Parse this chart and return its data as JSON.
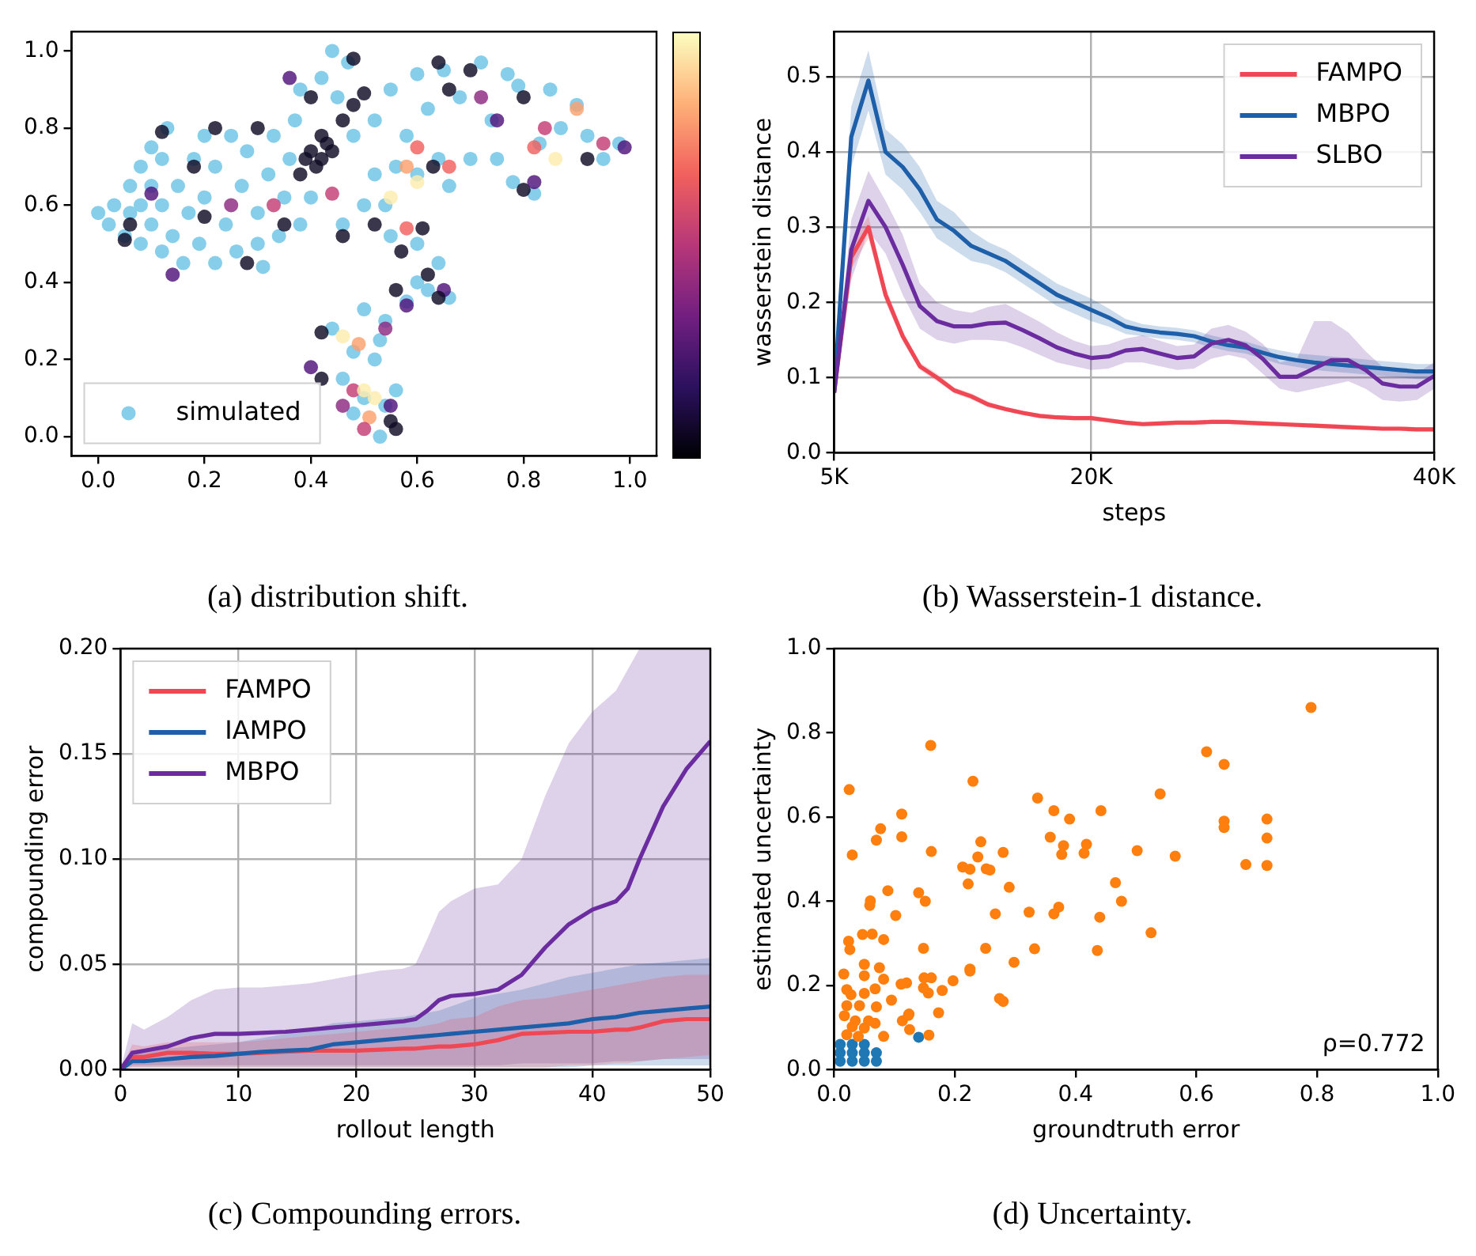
{
  "chart_data": [
    {
      "type": "scatter",
      "title": "(a) distribution shift.",
      "xlim": [
        -0.05,
        1.05
      ],
      "ylim": [
        -0.05,
        1.05
      ],
      "xticks": [
        {
          "value": 0,
          "label": "0.0"
        },
        {
          "value": 0.2,
          "label": "0.2"
        },
        {
          "value": 0.4,
          "label": "0.4"
        },
        {
          "value": 0.6,
          "label": "0.6"
        },
        {
          "value": 0.8,
          "label": "0.8"
        },
        {
          "value": 1,
          "label": "1.0"
        }
      ],
      "yticks": [
        {
          "value": 0,
          "label": "0.0"
        },
        {
          "value": 0.2,
          "label": "0.2"
        },
        {
          "value": 0.4,
          "label": "0.4"
        },
        {
          "value": 0.6,
          "label": "0.6"
        },
        {
          "value": 0.8,
          "label": "0.8"
        },
        {
          "value": 1,
          "label": "1.0"
        }
      ],
      "legend": "bottom left",
      "series": [
        {
          "name": "simulated",
          "color": "#87ceeb",
          "x": [
            0.0,
            0.02,
            0.03,
            0.05,
            0.06,
            0.06,
            0.08,
            0.08,
            0.08,
            0.1,
            0.1,
            0.1,
            0.12,
            0.12,
            0.12,
            0.13,
            0.14,
            0.15,
            0.16,
            0.17,
            0.18,
            0.19,
            0.2,
            0.2,
            0.22,
            0.22,
            0.24,
            0.25,
            0.26,
            0.27,
            0.28,
            0.3,
            0.3,
            0.31,
            0.32,
            0.33,
            0.34,
            0.35,
            0.36,
            0.37,
            0.38,
            0.38,
            0.4,
            0.42,
            0.44,
            0.45,
            0.46,
            0.47,
            0.48,
            0.5,
            0.52,
            0.52,
            0.54,
            0.55,
            0.56,
            0.58,
            0.6,
            0.6,
            0.62,
            0.64,
            0.65,
            0.66,
            0.68,
            0.7,
            0.72,
            0.74,
            0.75,
            0.77,
            0.78,
            0.79,
            0.82,
            0.83,
            0.85,
            0.87,
            0.9,
            0.92,
            0.95,
            0.98,
            0.55,
            0.6,
            0.64,
            0.62,
            0.58,
            0.54,
            0.5,
            0.48,
            0.52,
            0.46,
            0.5,
            0.54,
            0.53,
            0.56,
            0.6,
            0.66,
            0.44,
            0.48,
            0.53
          ],
          "values": [
            0.58,
            0.55,
            0.6,
            0.52,
            0.58,
            0.65,
            0.5,
            0.6,
            0.7,
            0.55,
            0.65,
            0.75,
            0.48,
            0.6,
            0.72,
            0.8,
            0.52,
            0.65,
            0.45,
            0.58,
            0.72,
            0.5,
            0.62,
            0.78,
            0.45,
            0.7,
            0.55,
            0.78,
            0.48,
            0.65,
            0.74,
            0.5,
            0.58,
            0.44,
            0.68,
            0.78,
            0.52,
            0.62,
            0.72,
            0.82,
            0.55,
            0.9,
            0.62,
            0.93,
            1.0,
            0.88,
            0.55,
            0.97,
            0.78,
            0.6,
            0.68,
            0.82,
            0.6,
            0.9,
            0.7,
            0.78,
            0.68,
            0.94,
            0.85,
            0.72,
            0.95,
            0.65,
            0.88,
            0.72,
            0.97,
            0.82,
            0.72,
            0.94,
            0.66,
            0.91,
            0.63,
            0.76,
            0.9,
            0.8,
            0.86,
            0.78,
            0.72,
            0.76,
            0.52,
            0.5,
            0.45,
            0.38,
            0.35,
            0.3,
            0.33,
            0.22,
            0.2,
            0.15,
            0.1,
            0.08,
            0.0,
            0.12,
            0.4,
            0.36,
            0.28,
            0.06,
            0.25
          ]
        },
        {
          "x": [
            0.4,
            0.42,
            0.41,
            0.43,
            0.39,
            0.44,
            0.38,
            0.42,
            0.46,
            0.48,
            0.36,
            0.4,
            0.48,
            0.5,
            0.12,
            0.1,
            0.06,
            0.05,
            0.14,
            0.18,
            0.2,
            0.22,
            0.25,
            0.28,
            0.3,
            0.33,
            0.35,
            0.46,
            0.44,
            0.52,
            0.55,
            0.6,
            0.58,
            0.6,
            0.63,
            0.64,
            0.66,
            0.7,
            0.72,
            0.75,
            0.8,
            0.82,
            0.84,
            0.86,
            0.9,
            0.92,
            0.95,
            0.99,
            0.8,
            0.82,
            0.66,
            0.58,
            0.61,
            0.57,
            0.62,
            0.65,
            0.64,
            0.56,
            0.58,
            0.42,
            0.4,
            0.42,
            0.46,
            0.49,
            0.48,
            0.5,
            0.52,
            0.51,
            0.56,
            0.5,
            0.55,
            0.46,
            0.54,
            0.55
          ],
          "values": [
            0.74,
            0.72,
            0.7,
            0.76,
            0.72,
            0.74,
            0.68,
            0.78,
            0.82,
            0.86,
            0.93,
            0.88,
            0.98,
            0.89,
            0.79,
            0.63,
            0.55,
            0.51,
            0.42,
            0.7,
            0.57,
            0.8,
            0.6,
            0.45,
            0.8,
            0.6,
            0.55,
            0.52,
            0.63,
            0.55,
            0.62,
            0.66,
            0.7,
            0.75,
            0.7,
            0.97,
            0.9,
            0.95,
            0.88,
            0.82,
            0.88,
            0.75,
            0.8,
            0.72,
            0.85,
            0.72,
            0.76,
            0.75,
            0.64,
            0.66,
            0.7,
            0.54,
            0.54,
            0.48,
            0.42,
            0.38,
            0.36,
            0.38,
            0.34,
            0.27,
            0.18,
            0.15,
            0.26,
            0.24,
            0.12,
            0.12,
            0.1,
            0.05,
            0.02,
            0.02,
            0.08,
            0.08,
            0.28,
            0.04
          ],
          "colors": [
            "#0d0a23",
            "#0d0a23",
            "#0d0a23",
            "#0d0a23",
            "#0d0a23",
            "#0d0a23",
            "#0d0a23",
            "#0d0a23",
            "#0d0a23",
            "#0d0a23",
            "#4f127b",
            "#0d0a23",
            "#0d0a23",
            "#0d0a23",
            "#0d0a23",
            "#4f127b",
            "#0d0a23",
            "#0d0a23",
            "#4f127b",
            "#0d0a23",
            "#0d0a23",
            "#0d0a23",
            "#8c2981",
            "#0d0a23",
            "#0d0a23",
            "#c43c75",
            "#0d0a23",
            "#0d0a23",
            "#c43c75",
            "#0d0a23",
            "#fcecae",
            "#fcecae",
            "#fd9f6c",
            "#f1605d",
            "#0d0a23",
            "#0d0a23",
            "#0d0a23",
            "#0d0a23",
            "#8c2981",
            "#4f127b",
            "#0d0a23",
            "#f1605d",
            "#c43c75",
            "#fcecae",
            "#fd9f6c",
            "#0d0a23",
            "#c43c75",
            "#4f127b",
            "#0d0a23",
            "#4f127b",
            "#f1605d",
            "#f1605d",
            "#0d0a23",
            "#0d0a23",
            "#0d0a23",
            "#4f127b",
            "#0d0a23",
            "#0d0a23",
            "#4f127b",
            "#0d0a23",
            "#4f127b",
            "#0d0a23",
            "#fcecae",
            "#fd9f6c",
            "#c43c75",
            "#fcecae",
            "#fcecae",
            "#fd9f6c",
            "#0d0a23",
            "#c43c75",
            "#4f127b",
            "#8c2981",
            "#8c2981",
            "#0d0a23"
          ]
        }
      ]
    },
    {
      "type": "line",
      "title": "(b) Wasserstein-1 distance.",
      "xlabel": "steps",
      "ylabel": "wasserstein distance",
      "x": [
        5000,
        6000,
        7000,
        8000,
        9000,
        10000,
        11000,
        12000,
        13000,
        14000,
        15000,
        16000,
        17000,
        18000,
        19000,
        20000,
        21000,
        22000,
        23000,
        24000,
        25000,
        26000,
        27000,
        28000,
        29000,
        30000,
        31000,
        32000,
        33000,
        34000,
        35000,
        36000,
        37000,
        38000,
        39000,
        40000
      ],
      "xlim": [
        5000,
        40000
      ],
      "xticks": [
        {
          "value": 5000,
          "label": "5K"
        },
        {
          "value": 20000,
          "label": "20K"
        },
        {
          "value": 40000,
          "label": "40K"
        }
      ],
      "ylim": [
        0,
        0.56
      ],
      "yticks": [
        {
          "value": 0,
          "label": "0.0"
        },
        {
          "value": 0.1,
          "label": "0.1"
        },
        {
          "value": 0.2,
          "label": "0.2"
        },
        {
          "value": 0.3,
          "label": "0.3"
        },
        {
          "value": 0.4,
          "label": "0.4"
        },
        {
          "value": 0.5,
          "label": "0.5"
        }
      ],
      "grid": true,
      "legend": "top right",
      "series": [
        {
          "name": "FAMPO",
          "color": "#ef4754",
          "values": [
            0.08,
            0.26,
            0.3,
            0.21,
            0.155,
            0.115,
            0.1,
            0.083,
            0.075,
            0.064,
            0.058,
            0.053,
            0.049,
            0.047,
            0.046,
            0.046,
            0.043,
            0.04,
            0.038,
            0.039,
            0.04,
            0.04,
            0.041,
            0.041,
            0.04,
            0.039,
            0.038,
            0.037,
            0.036,
            0.035,
            0.034,
            0.033,
            0.032,
            0.032,
            0.031,
            0.031
          ],
          "lower": [
            0.075,
            0.245,
            0.285,
            0.2,
            0.148,
            0.11,
            0.095,
            0.079,
            0.071,
            0.06,
            0.055,
            0.05,
            0.046,
            0.044,
            0.043,
            0.043,
            0.04,
            0.037,
            0.035,
            0.036,
            0.037,
            0.037,
            0.038,
            0.038,
            0.037,
            0.036,
            0.035,
            0.034,
            0.033,
            0.032,
            0.031,
            0.03,
            0.029,
            0.029,
            0.028,
            0.028
          ],
          "upper": [
            0.085,
            0.275,
            0.315,
            0.22,
            0.162,
            0.12,
            0.105,
            0.087,
            0.079,
            0.068,
            0.061,
            0.056,
            0.052,
            0.05,
            0.049,
            0.049,
            0.046,
            0.043,
            0.041,
            0.042,
            0.043,
            0.043,
            0.044,
            0.044,
            0.043,
            0.042,
            0.041,
            0.04,
            0.039,
            0.038,
            0.037,
            0.036,
            0.035,
            0.035,
            0.034,
            0.034
          ]
        },
        {
          "name": "MBPO",
          "color": "#1d5fa8",
          "values": [
            0.08,
            0.42,
            0.495,
            0.4,
            0.38,
            0.35,
            0.31,
            0.295,
            0.275,
            0.265,
            0.255,
            0.24,
            0.225,
            0.21,
            0.2,
            0.19,
            0.18,
            0.168,
            0.163,
            0.16,
            0.158,
            0.155,
            0.148,
            0.143,
            0.14,
            0.133,
            0.127,
            0.123,
            0.12,
            0.118,
            0.116,
            0.114,
            0.112,
            0.11,
            0.108,
            0.108
          ],
          "lower": [
            0.07,
            0.38,
            0.455,
            0.37,
            0.35,
            0.32,
            0.285,
            0.27,
            0.255,
            0.25,
            0.24,
            0.225,
            0.21,
            0.195,
            0.185,
            0.175,
            0.168,
            0.158,
            0.155,
            0.152,
            0.15,
            0.147,
            0.14,
            0.135,
            0.132,
            0.125,
            0.118,
            0.114,
            0.11,
            0.108,
            0.106,
            0.104,
            0.102,
            0.1,
            0.098,
            0.098
          ],
          "upper": [
            0.09,
            0.46,
            0.535,
            0.43,
            0.41,
            0.38,
            0.335,
            0.32,
            0.295,
            0.28,
            0.27,
            0.255,
            0.24,
            0.225,
            0.215,
            0.205,
            0.192,
            0.178,
            0.171,
            0.168,
            0.166,
            0.163,
            0.156,
            0.151,
            0.148,
            0.141,
            0.136,
            0.132,
            0.13,
            0.128,
            0.126,
            0.124,
            0.122,
            0.12,
            0.118,
            0.118
          ]
        },
        {
          "name": "SLBO",
          "color": "#6a2c9e",
          "values": [
            0.08,
            0.27,
            0.335,
            0.3,
            0.25,
            0.195,
            0.175,
            0.168,
            0.168,
            0.172,
            0.173,
            0.163,
            0.152,
            0.14,
            0.132,
            0.126,
            0.128,
            0.136,
            0.138,
            0.132,
            0.126,
            0.128,
            0.145,
            0.15,
            0.143,
            0.125,
            0.101,
            0.101,
            0.112,
            0.123,
            0.123,
            0.11,
            0.092,
            0.088,
            0.088,
            0.102
          ],
          "lower": [
            0.07,
            0.23,
            0.295,
            0.265,
            0.21,
            0.165,
            0.15,
            0.145,
            0.15,
            0.15,
            0.148,
            0.14,
            0.13,
            0.12,
            0.115,
            0.11,
            0.112,
            0.12,
            0.12,
            0.115,
            0.11,
            0.112,
            0.125,
            0.13,
            0.125,
            0.105,
            0.085,
            0.08,
            0.085,
            0.09,
            0.095,
            0.085,
            0.07,
            0.068,
            0.07,
            0.085
          ],
          "upper": [
            0.09,
            0.31,
            0.375,
            0.335,
            0.29,
            0.225,
            0.2,
            0.19,
            0.186,
            0.194,
            0.198,
            0.186,
            0.174,
            0.16,
            0.149,
            0.142,
            0.144,
            0.152,
            0.156,
            0.149,
            0.142,
            0.144,
            0.165,
            0.17,
            0.161,
            0.145,
            0.12,
            0.125,
            0.175,
            0.175,
            0.16,
            0.135,
            0.114,
            0.108,
            0.106,
            0.12
          ]
        }
      ]
    },
    {
      "type": "line",
      "title": "(c) Compounding errors.",
      "xlabel": "rollout length",
      "ylabel": "compounding error",
      "x": [
        0,
        1,
        2,
        4,
        6,
        8,
        10,
        12,
        14,
        16,
        18,
        20,
        22,
        24,
        25,
        26,
        27,
        28,
        30,
        32,
        34,
        36,
        38,
        40,
        42,
        43,
        44,
        46,
        48,
        50
      ],
      "xlim": [
        0,
        50
      ],
      "xticks": [
        0,
        10,
        20,
        30,
        40,
        50
      ],
      "ylim": [
        0,
        0.2
      ],
      "yticks": [
        {
          "value": 0,
          "label": "0.00"
        },
        {
          "value": 0.05,
          "label": "0.05"
        },
        {
          "value": 0.1,
          "label": "0.10"
        },
        {
          "value": 0.15,
          "label": "0.15"
        },
        {
          "value": 0.2,
          "label": "0.20"
        }
      ],
      "grid": true,
      "legend": "top left",
      "series": [
        {
          "name": "FAMPO",
          "color": "#ef4754",
          "values": [
            0,
            0.006,
            0.006,
            0.008,
            0.008,
            0.0075,
            0.0075,
            0.008,
            0.0085,
            0.009,
            0.009,
            0.009,
            0.0095,
            0.01,
            0.01,
            0.0105,
            0.011,
            0.011,
            0.012,
            0.014,
            0.017,
            0.0175,
            0.018,
            0.018,
            0.019,
            0.019,
            0.02,
            0.023,
            0.024,
            0.024
          ],
          "lower": [
            0,
            0.001,
            0.001,
            0.001,
            0.001,
            0.001,
            0.001,
            0.001,
            0.001,
            0.001,
            0.001,
            0.001,
            0.001,
            0.001,
            0.001,
            0.001,
            0.001,
            0.001,
            0.001,
            0.001,
            0.001,
            0.001,
            0.002,
            0.002,
            0.003,
            0.003,
            0.004,
            0.005,
            0.006,
            0.007
          ],
          "upper": [
            0,
            0.012,
            0.011,
            0.013,
            0.013,
            0.013,
            0.013,
            0.014,
            0.015,
            0.016,
            0.017,
            0.018,
            0.019,
            0.02,
            0.02,
            0.021,
            0.022,
            0.024,
            0.025,
            0.03,
            0.033,
            0.034,
            0.036,
            0.038,
            0.04,
            0.041,
            0.042,
            0.044,
            0.045,
            0.045
          ]
        },
        {
          "name": "IAMPO",
          "color": "#1d5fa8",
          "values": [
            0,
            0.004,
            0.004,
            0.005,
            0.006,
            0.0065,
            0.0075,
            0.0085,
            0.009,
            0.0095,
            0.012,
            0.013,
            0.014,
            0.015,
            0.0155,
            0.016,
            0.0165,
            0.017,
            0.018,
            0.019,
            0.02,
            0.021,
            0.022,
            0.024,
            0.025,
            0.026,
            0.027,
            0.028,
            0.029,
            0.03
          ],
          "lower": [
            0,
            0.001,
            0.001,
            0.001,
            0.001,
            0.001,
            0.001,
            0.001,
            0.001,
            0.001,
            0.001,
            0.001,
            0.001,
            0.001,
            0.001,
            0.001,
            0.001,
            0.001,
            0.001,
            0.001,
            0.001,
            0.001,
            0.001,
            0.002,
            0.002,
            0.002,
            0.002,
            0.002,
            0.002,
            0.002
          ],
          "upper": [
            0,
            0.008,
            0.008,
            0.01,
            0.011,
            0.012,
            0.013,
            0.015,
            0.017,
            0.019,
            0.022,
            0.023,
            0.024,
            0.025,
            0.026,
            0.027,
            0.028,
            0.03,
            0.034,
            0.036,
            0.038,
            0.041,
            0.044,
            0.046,
            0.048,
            0.049,
            0.05,
            0.051,
            0.052,
            0.053
          ]
        },
        {
          "name": "MBPO",
          "color": "#6a2c9e",
          "values": [
            0,
            0.008,
            0.009,
            0.011,
            0.015,
            0.017,
            0.017,
            0.0175,
            0.018,
            0.019,
            0.02,
            0.021,
            0.022,
            0.023,
            0.024,
            0.028,
            0.033,
            0.035,
            0.036,
            0.038,
            0.045,
            0.058,
            0.069,
            0.076,
            0.08,
            0.086,
            0.1,
            0.125,
            0.143,
            0.156
          ],
          "lower": [
            0,
            0.002,
            0.002,
            0.002,
            0.002,
            0.002,
            0.002,
            0.002,
            0.002,
            0.002,
            0.002,
            0.002,
            0.002,
            0.002,
            0.002,
            0.002,
            0.002,
            0.002,
            0.002,
            0.002,
            0.003,
            0.003,
            0.003,
            0.003,
            0.004,
            0.004,
            0.004,
            0.005,
            0.005,
            0.005
          ],
          "upper": [
            0,
            0.022,
            0.019,
            0.025,
            0.033,
            0.038,
            0.039,
            0.039,
            0.04,
            0.041,
            0.043,
            0.045,
            0.047,
            0.048,
            0.05,
            0.062,
            0.075,
            0.08,
            0.086,
            0.088,
            0.1,
            0.13,
            0.155,
            0.17,
            0.18,
            0.19,
            0.2,
            0.2,
            0.2,
            0.2
          ]
        }
      ]
    },
    {
      "type": "scatter",
      "title": "(d) Uncertainty.",
      "xlabel": "groundtruth error",
      "ylabel": "estimated uncertainty",
      "xlim": [
        0,
        1
      ],
      "ylim": [
        0,
        1
      ],
      "xticks": [
        {
          "value": 0,
          "label": "0.0"
        },
        {
          "value": 0.2,
          "label": "0.2"
        },
        {
          "value": 0.4,
          "label": "0.4"
        },
        {
          "value": 0.6,
          "label": "0.6"
        },
        {
          "value": 0.8,
          "label": "0.8"
        },
        {
          "value": 1,
          "label": "1.0"
        }
      ],
      "yticks": [
        {
          "value": 0,
          "label": "0.0"
        },
        {
          "value": 0.2,
          "label": "0.2"
        },
        {
          "value": 0.4,
          "label": "0.4"
        },
        {
          "value": 0.6,
          "label": "0.6"
        },
        {
          "value": 0.8,
          "label": "0.8"
        },
        {
          "value": 1,
          "label": "1.0"
        }
      ],
      "annotations": [
        "ρ=0.772"
      ],
      "series": [
        {
          "color": "#1f77b4",
          "x": [
            0.01,
            0.03,
            0.05,
            0.07,
            0.01,
            0.03,
            0.05,
            0.07,
            0.01,
            0.03,
            0.05,
            0.14
          ],
          "values": [
            0.02,
            0.02,
            0.02,
            0.02,
            0.04,
            0.04,
            0.04,
            0.04,
            0.06,
            0.06,
            0.06,
            0.077
          ]
        },
        {
          "color": "#ff7f0e",
          "x": [
            0.79,
            0.16,
            0.025,
            0.23,
            0.617,
            0.646,
            0.54,
            0.337,
            0.442,
            0.364,
            0.39,
            0.646,
            0.646,
            0.717,
            0.717,
            0.717,
            0.682,
            0.112,
            0.077,
            0.07,
            0.112,
            0.03,
            0.161,
            0.358,
            0.38,
            0.377,
            0.418,
            0.414,
            0.502,
            0.565,
            0.243,
            0.28,
            0.238,
            0.213,
            0.225,
            0.252,
            0.258,
            0.222,
            0.466,
            0.476,
            0.29,
            0.089,
            0.14,
            0.151,
            0.06,
            0.059,
            0.102,
            0.267,
            0.323,
            0.364,
            0.372,
            0.44,
            0.525,
            0.436,
            0.332,
            0.251,
            0.148,
            0.024,
            0.026,
            0.047,
            0.063,
            0.082,
            0.298,
            0.225,
            0.225,
            0.197,
            0.179,
            0.156,
            0.149,
            0.161,
            0.148,
            0.173,
            0.274,
            0.28,
            0.111,
            0.12,
            0.124,
            0.123,
            0.095,
            0.075,
            0.05,
            0.05,
            0.082,
            0.07,
            0.016,
            0.021,
            0.028,
            0.05,
            0.068,
            0.042,
            0.021,
            0.017,
            0.035,
            0.057,
            0.113,
            0.125,
            0.157,
            0.03,
            0.05,
            0.068,
            0.082,
            0.04,
            0.021
          ],
          "values": [
            0.86,
            0.77,
            0.665,
            0.685,
            0.755,
            0.725,
            0.655,
            0.645,
            0.615,
            0.615,
            0.595,
            0.59,
            0.575,
            0.595,
            0.55,
            0.485,
            0.487,
            0.607,
            0.572,
            0.545,
            0.553,
            0.51,
            0.518,
            0.552,
            0.532,
            0.511,
            0.535,
            0.514,
            0.52,
            0.507,
            0.541,
            0.516,
            0.505,
            0.481,
            0.476,
            0.477,
            0.474,
            0.441,
            0.444,
            0.4,
            0.433,
            0.425,
            0.42,
            0.4,
            0.401,
            0.39,
            0.366,
            0.37,
            0.374,
            0.37,
            0.386,
            0.362,
            0.325,
            0.283,
            0.287,
            0.288,
            0.288,
            0.305,
            0.285,
            0.321,
            0.322,
            0.309,
            0.255,
            0.239,
            0.234,
            0.211,
            0.188,
            0.182,
            0.218,
            0.218,
            0.194,
            0.135,
            0.169,
            0.162,
            0.203,
            0.206,
            0.132,
            0.129,
            0.165,
            0.242,
            0.25,
            0.223,
            0.215,
            0.149,
            0.227,
            0.19,
            0.178,
            0.181,
            0.192,
            0.152,
            0.152,
            0.128,
            0.116,
            0.116,
            0.116,
            0.095,
            0.082,
            0.102,
            0.099,
            0.11,
            0.079,
            0.079,
            0.083
          ]
        }
      ]
    }
  ]
}
